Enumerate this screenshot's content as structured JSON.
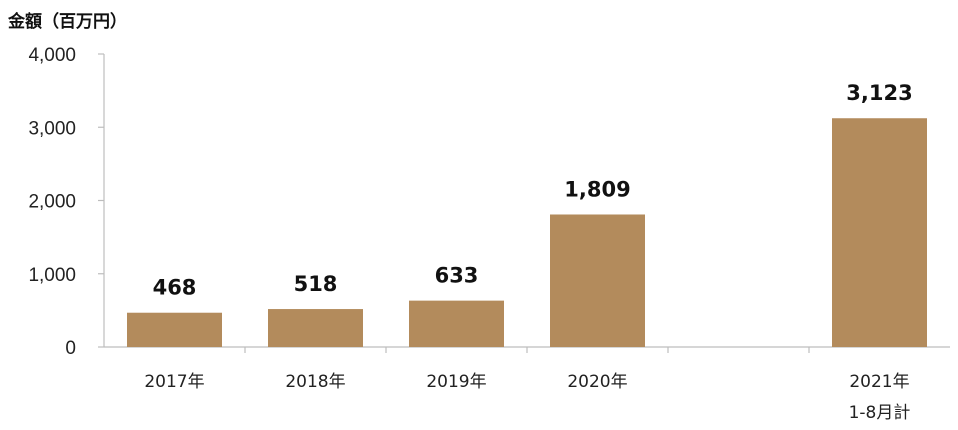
{
  "chart_data": {
    "type": "bar",
    "ylabel": "金額（百万円）",
    "ylim": [
      0,
      4000
    ],
    "yticks": [
      {
        "value": 0,
        "label": "0"
      },
      {
        "value": 1000,
        "label": "1,000"
      },
      {
        "value": 2000,
        "label": "2,000"
      },
      {
        "value": 3000,
        "label": "3,000"
      },
      {
        "value": 4000,
        "label": "4,000"
      }
    ],
    "categories": [
      {
        "line1": "2017年",
        "line2": ""
      },
      {
        "line1": "2018年",
        "line2": ""
      },
      {
        "line1": "2019年",
        "line2": ""
      },
      {
        "line1": "2020年",
        "line2": ""
      },
      {
        "line1": "",
        "line2": ""
      },
      {
        "line1": "2021年",
        "line2": "1-8月計"
      }
    ],
    "values": [
      468,
      518,
      633,
      1809,
      null,
      3123
    ],
    "data_labels": [
      "468",
      "518",
      "633",
      "1,809",
      "",
      "3,123"
    ],
    "bar_color": "#b38b5c",
    "grid": false
  }
}
